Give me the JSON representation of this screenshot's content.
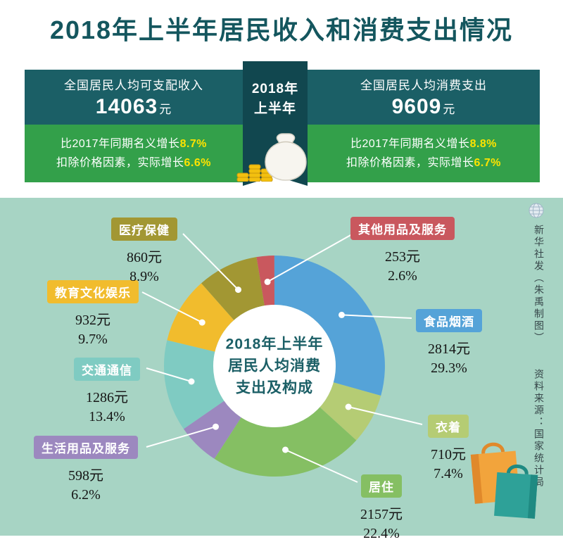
{
  "title": "2018年上半年居民收入和消费支出情况",
  "summary": {
    "ribbon": {
      "line1": "2018年",
      "line2": "上半年"
    },
    "income": {
      "label": "全国居民人均可支配收入",
      "value": "14063",
      "unit": "元",
      "growth_line1_prefix": "比2017年同期名义增长",
      "growth_line1_value": "8.7%",
      "growth_line2_prefix": "扣除价格因素，实际增长",
      "growth_line2_value": "6.6%"
    },
    "expenditure": {
      "label": "全国居民人均消费支出",
      "value": "9609",
      "unit": "元",
      "growth_line1_prefix": "比2017年同期名义增长",
      "growth_line1_value": "8.8%",
      "growth_line2_prefix": "扣除价格因素，实际增长",
      "growth_line2_value": "6.7%"
    }
  },
  "chart_data": {
    "type": "pie",
    "subtype": "donut",
    "center_title": [
      "2018年上半年",
      "居民人均消费",
      "支出及构成"
    ],
    "unit": "元",
    "start_angle_deg": -9.4,
    "legend_position": "around",
    "slices": [
      {
        "label": "其他用品及服务",
        "value": 253,
        "value_label": "253元",
        "percent": 2.6,
        "percent_label": "2.6%",
        "color": "#c9585e"
      },
      {
        "label": "食品烟酒",
        "value": 2814,
        "value_label": "2814元",
        "percent": 29.3,
        "percent_label": "29.3%",
        "color": "#55a3d8"
      },
      {
        "label": "衣着",
        "value": 710,
        "value_label": "710元",
        "percent": 7.4,
        "percent_label": "7.4%",
        "color": "#b5cc74"
      },
      {
        "label": "居住",
        "value": 2157,
        "value_label": "2157元",
        "percent": 22.4,
        "percent_label": "22.4%",
        "color": "#85bf63"
      },
      {
        "label": "生活用品及服务",
        "value": 598,
        "value_label": "598元",
        "percent": 6.2,
        "percent_label": "6.2%",
        "color": "#9c88bf"
      },
      {
        "label": "交通通信",
        "value": 1286,
        "value_label": "1286元",
        "percent": 13.4,
        "percent_label": "13.4%",
        "color": "#7fcbc2"
      },
      {
        "label": "教育文化娱乐",
        "value": 932,
        "value_label": "932元",
        "percent": 9.7,
        "percent_label": "9.7%",
        "color": "#f1bc2d"
      },
      {
        "label": "医疗保健",
        "value": 860,
        "value_label": "860元",
        "percent": 8.9,
        "percent_label": "8.9%",
        "color": "#a29733"
      }
    ]
  },
  "credits": {
    "byline": "新华社发（朱禹制图）",
    "source": "资料来源：国家统计局"
  },
  "colors": {
    "title": "#14565e",
    "box_teal": "#1b5f66",
    "ribbon_teal": "#11474f",
    "growth_green": "#33a04a",
    "highlight_yellow": "#ffe300",
    "chart_bg": "#a7d4c4"
  }
}
